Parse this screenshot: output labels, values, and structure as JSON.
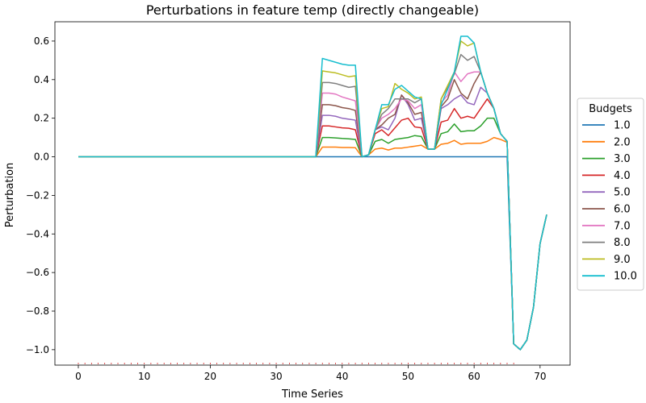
{
  "chart_data": {
    "type": "line",
    "title": "Perturbations in feature temp (directly changeable)",
    "xlabel": "Time Series",
    "ylabel": "Perturbation",
    "xlim": [
      -3.55,
      74.55
    ],
    "ylim": [
      -1.08,
      0.7
    ],
    "xticks": [
      0,
      10,
      20,
      30,
      40,
      50,
      60,
      70
    ],
    "yticks": [
      -1.0,
      -0.8,
      -0.6,
      -0.4,
      -0.2,
      0.0,
      0.2,
      0.4,
      0.6
    ],
    "grid": false,
    "legend": {
      "title": "Budgets",
      "placement": "right"
    },
    "series": [
      {
        "name": "1.0",
        "color": "#1f77b4",
        "values": [
          0,
          0,
          0,
          0,
          0,
          0,
          0,
          0,
          0,
          0,
          0,
          0,
          0,
          0,
          0,
          0,
          0,
          0,
          0,
          0,
          0,
          0,
          0,
          0,
          0,
          0,
          0,
          0,
          0,
          0,
          0,
          0,
          0,
          0,
          0,
          0,
          0,
          0,
          0,
          0,
          0,
          0,
          0,
          0,
          0,
          0,
          0,
          0,
          0,
          0,
          0,
          0,
          0,
          0,
          0,
          0,
          0,
          0,
          0,
          0,
          0,
          0,
          0,
          0,
          0,
          0,
          -0.97,
          -1.0,
          -0.95,
          -0.78,
          -0.45,
          -0.3
        ]
      },
      {
        "name": "2.0",
        "color": "#ff7f0e",
        "values": [
          0,
          0,
          0,
          0,
          0,
          0,
          0,
          0,
          0,
          0,
          0,
          0,
          0,
          0,
          0,
          0,
          0,
          0,
          0,
          0,
          0,
          0,
          0,
          0,
          0,
          0,
          0,
          0,
          0,
          0,
          0,
          0,
          0,
          0,
          0,
          0,
          0,
          0.05,
          0.05,
          0.05,
          0.048,
          0.048,
          0.047,
          0.0,
          0.01,
          0.04,
          0.045,
          0.035,
          0.045,
          0.045,
          0.05,
          0.055,
          0.06,
          0.04,
          0.04,
          0.065,
          0.07,
          0.085,
          0.065,
          0.07,
          0.07,
          0.07,
          0.08,
          0.1,
          0.09,
          0.075,
          -0.97,
          -1.0,
          -0.95,
          -0.78,
          -0.45,
          -0.3
        ]
      },
      {
        "name": "3.0",
        "color": "#2ca02c",
        "values": [
          0,
          0,
          0,
          0,
          0,
          0,
          0,
          0,
          0,
          0,
          0,
          0,
          0,
          0,
          0,
          0,
          0,
          0,
          0,
          0,
          0,
          0,
          0,
          0,
          0,
          0,
          0,
          0,
          0,
          0,
          0,
          0,
          0,
          0,
          0,
          0,
          0,
          0.1,
          0.1,
          0.098,
          0.095,
          0.093,
          0.09,
          0.0,
          0.01,
          0.08,
          0.09,
          0.07,
          0.09,
          0.095,
          0.1,
          0.11,
          0.105,
          0.04,
          0.04,
          0.12,
          0.13,
          0.17,
          0.13,
          0.135,
          0.135,
          0.16,
          0.2,
          0.2,
          0.12,
          0.08,
          -0.97,
          -1.0,
          -0.95,
          -0.78,
          -0.45,
          -0.3
        ]
      },
      {
        "name": "4.0",
        "color": "#d62728",
        "values": [
          0,
          0,
          0,
          0,
          0,
          0,
          0,
          0,
          0,
          0,
          0,
          0,
          0,
          0,
          0,
          0,
          0,
          0,
          0,
          0,
          0,
          0,
          0,
          0,
          0,
          0,
          0,
          0,
          0,
          0,
          0,
          0,
          0,
          0,
          0,
          0,
          0,
          0.16,
          0.16,
          0.155,
          0.15,
          0.148,
          0.14,
          0.0,
          0.01,
          0.12,
          0.14,
          0.11,
          0.15,
          0.19,
          0.2,
          0.155,
          0.15,
          0.04,
          0.04,
          0.18,
          0.19,
          0.25,
          0.2,
          0.21,
          0.2,
          0.25,
          0.3,
          0.25,
          0.12,
          0.08,
          -0.97,
          -1.0,
          -0.95,
          -0.78,
          -0.45,
          -0.3
        ]
      },
      {
        "name": "5.0",
        "color": "#9467bd",
        "values": [
          0,
          0,
          0,
          0,
          0,
          0,
          0,
          0,
          0,
          0,
          0,
          0,
          0,
          0,
          0,
          0,
          0,
          0,
          0,
          0,
          0,
          0,
          0,
          0,
          0,
          0,
          0,
          0,
          0,
          0,
          0,
          0,
          0,
          0,
          0,
          0,
          0,
          0.215,
          0.215,
          0.21,
          0.2,
          0.195,
          0.19,
          0.0,
          0.01,
          0.14,
          0.155,
          0.14,
          0.2,
          0.32,
          0.27,
          0.19,
          0.2,
          0.04,
          0.04,
          0.25,
          0.27,
          0.3,
          0.32,
          0.28,
          0.27,
          0.36,
          0.33,
          0.25,
          0.12,
          0.08,
          -0.97,
          -1.0,
          -0.95,
          -0.78,
          -0.45,
          -0.3
        ]
      },
      {
        "name": "6.0",
        "color": "#8c564b",
        "values": [
          0,
          0,
          0,
          0,
          0,
          0,
          0,
          0,
          0,
          0,
          0,
          0,
          0,
          0,
          0,
          0,
          0,
          0,
          0,
          0,
          0,
          0,
          0,
          0,
          0,
          0,
          0,
          0,
          0,
          0,
          0,
          0,
          0,
          0,
          0,
          0,
          0,
          0.27,
          0.27,
          0.265,
          0.255,
          0.25,
          0.24,
          0.0,
          0.01,
          0.14,
          0.165,
          0.2,
          0.22,
          0.32,
          0.28,
          0.22,
          0.23,
          0.04,
          0.04,
          0.26,
          0.3,
          0.4,
          0.33,
          0.3,
          0.38,
          0.44,
          0.33,
          0.25,
          0.12,
          0.08,
          -0.97,
          -1.0,
          -0.95,
          -0.78,
          -0.45,
          -0.3
        ]
      },
      {
        "name": "7.0",
        "color": "#e377c2",
        "values": [
          0,
          0,
          0,
          0,
          0,
          0,
          0,
          0,
          0,
          0,
          0,
          0,
          0,
          0,
          0,
          0,
          0,
          0,
          0,
          0,
          0,
          0,
          0,
          0,
          0,
          0,
          0,
          0,
          0,
          0,
          0,
          0,
          0,
          0,
          0,
          0,
          0,
          0.33,
          0.33,
          0.325,
          0.31,
          0.3,
          0.29,
          0.0,
          0.01,
          0.14,
          0.2,
          0.22,
          0.25,
          0.3,
          0.29,
          0.25,
          0.27,
          0.04,
          0.04,
          0.28,
          0.32,
          0.44,
          0.39,
          0.43,
          0.44,
          0.44,
          0.33,
          0.25,
          0.12,
          0.08,
          -0.97,
          -1.0,
          -0.95,
          -0.78,
          -0.45,
          -0.3
        ]
      },
      {
        "name": "8.0",
        "color": "#7f7f7f",
        "values": [
          0,
          0,
          0,
          0,
          0,
          0,
          0,
          0,
          0,
          0,
          0,
          0,
          0,
          0,
          0,
          0,
          0,
          0,
          0,
          0,
          0,
          0,
          0,
          0,
          0,
          0,
          0,
          0,
          0,
          0,
          0,
          0,
          0,
          0,
          0,
          0,
          0,
          0.385,
          0.385,
          0.38,
          0.37,
          0.36,
          0.365,
          0.0,
          0.01,
          0.14,
          0.22,
          0.25,
          0.3,
          0.3,
          0.3,
          0.28,
          0.3,
          0.04,
          0.04,
          0.3,
          0.36,
          0.43,
          0.53,
          0.5,
          0.52,
          0.44,
          0.33,
          0.25,
          0.12,
          0.08,
          -0.97,
          -1.0,
          -0.95,
          -0.78,
          -0.45,
          -0.3
        ]
      },
      {
        "name": "9.0",
        "color": "#bcbd22",
        "values": [
          0,
          0,
          0,
          0,
          0,
          0,
          0,
          0,
          0,
          0,
          0,
          0,
          0,
          0,
          0,
          0,
          0,
          0,
          0,
          0,
          0,
          0,
          0,
          0,
          0,
          0,
          0,
          0,
          0,
          0,
          0,
          0,
          0,
          0,
          0,
          0,
          0,
          0.445,
          0.44,
          0.435,
          0.425,
          0.415,
          0.42,
          0.0,
          0.01,
          0.14,
          0.25,
          0.26,
          0.38,
          0.35,
          0.33,
          0.3,
          0.31,
          0.04,
          0.04,
          0.3,
          0.37,
          0.44,
          0.6,
          0.575,
          0.59,
          0.44,
          0.33,
          0.25,
          0.12,
          0.08,
          -0.97,
          -1.0,
          -0.95,
          -0.78,
          -0.45,
          -0.3
        ]
      },
      {
        "name": "10.0",
        "color": "#17becf",
        "values": [
          0,
          0,
          0,
          0,
          0,
          0,
          0,
          0,
          0,
          0,
          0,
          0,
          0,
          0,
          0,
          0,
          0,
          0,
          0,
          0,
          0,
          0,
          0,
          0,
          0,
          0,
          0,
          0,
          0,
          0,
          0,
          0,
          0,
          0,
          0,
          0,
          0,
          0.51,
          0.5,
          0.49,
          0.48,
          0.475,
          0.475,
          0.0,
          0.01,
          0.14,
          0.27,
          0.27,
          0.35,
          0.37,
          0.34,
          0.31,
          0.3,
          0.04,
          0.04,
          0.27,
          0.35,
          0.44,
          0.625,
          0.625,
          0.59,
          0.44,
          0.33,
          0.25,
          0.12,
          0.08,
          -0.97,
          -1.0,
          -0.95,
          -0.78,
          -0.45,
          -0.3
        ]
      }
    ]
  }
}
